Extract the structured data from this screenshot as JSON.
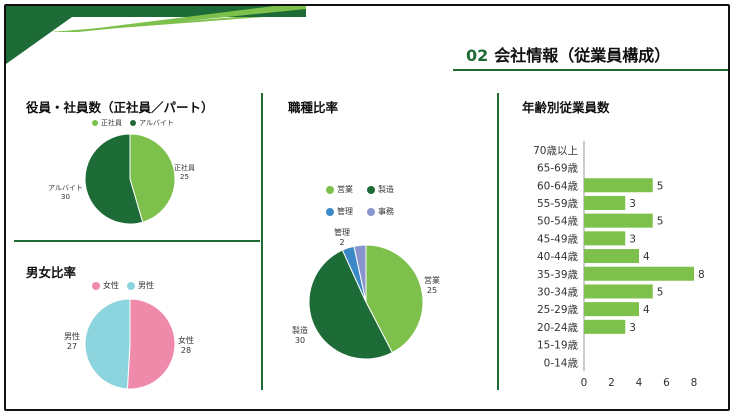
{
  "header": {
    "number": "02",
    "title": "会社情報（従業員構成）"
  },
  "colors": {
    "green_light": "#7dc04b",
    "green_dark": "#1d6b36",
    "blue": "#3a88c6",
    "lavender": "#8a95cf",
    "pink": "#f08aaa",
    "cyan": "#8cd4de"
  },
  "chart_data": [
    {
      "type": "pie",
      "title": "役員・社員数（正社員／パート）",
      "categories": [
        "正社員",
        "アルバイト"
      ],
      "values": [
        25,
        30
      ],
      "legend": "top",
      "labels": [
        {
          "name": "正社員",
          "value": "25"
        },
        {
          "name": "アルバイト",
          "value": "30"
        }
      ]
    },
    {
      "type": "pie",
      "title": "男女比率",
      "categories": [
        "女性",
        "男性"
      ],
      "values": [
        28,
        27
      ],
      "legend": "top",
      "labels": [
        {
          "name": "女性",
          "value": "28"
        },
        {
          "name": "男性",
          "value": "27"
        }
      ]
    },
    {
      "type": "pie",
      "title": "職種比率",
      "categories": [
        "営業",
        "製造",
        "管理",
        "事務"
      ],
      "values": [
        25,
        30,
        2,
        2
      ],
      "legend": "top",
      "legend_items": [
        "営業",
        "製造",
        "管理",
        "事務"
      ],
      "labels": [
        {
          "name": "営業",
          "value": "25"
        },
        {
          "name": "製造",
          "value": "30"
        },
        {
          "name": "管理",
          "value": "2"
        }
      ]
    },
    {
      "type": "bar",
      "orientation": "horizontal",
      "title": "年齢別従業員数",
      "categories": [
        "70歳以上",
        "65-69歳",
        "60-64歳",
        "55-59歳",
        "50-54歳",
        "45-49歳",
        "40-44歳",
        "35-39歳",
        "30-34歳",
        "25-29歳",
        "20-24歳",
        "15-19歳",
        "0-14歳"
      ],
      "values": [
        0,
        0,
        5,
        3,
        5,
        3,
        4,
        8,
        5,
        4,
        3,
        0,
        0
      ],
      "xlim": [
        0,
        8
      ],
      "xticks": [
        "0",
        "2",
        "4",
        "6",
        "8"
      ],
      "grid": false
    }
  ]
}
